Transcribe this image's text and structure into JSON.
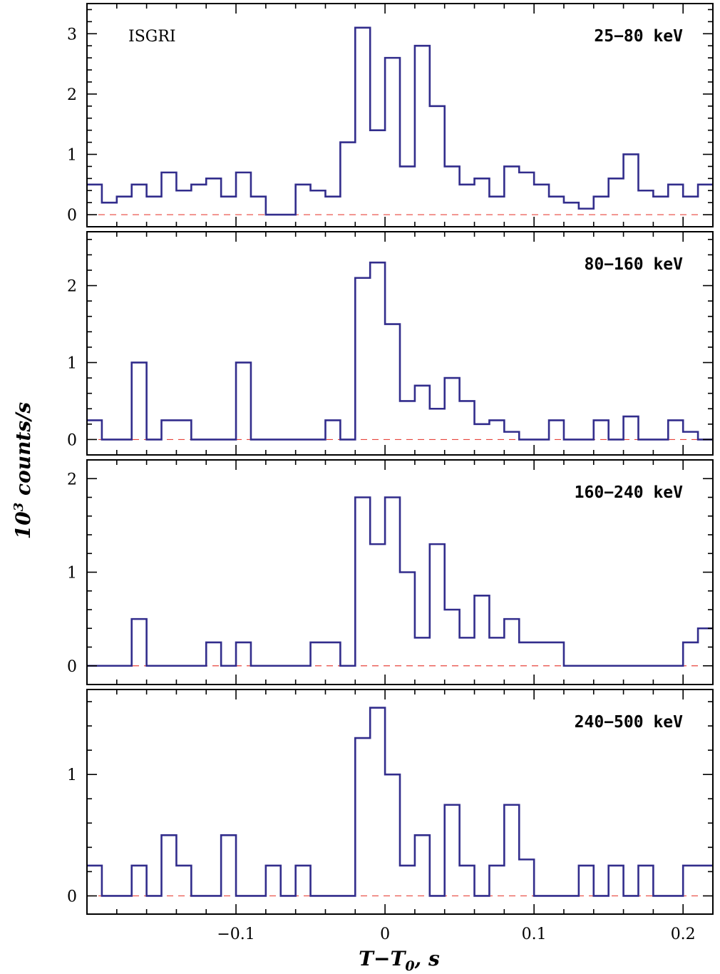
{
  "chart_data": {
    "type": "line",
    "instrument": "ISGRI",
    "xlabel_parts": {
      "main": "T−T",
      "sub": "0",
      "tail": ", s"
    },
    "ylabel_parts": {
      "main": "10",
      "sup": "3",
      "tail": " counts/s"
    },
    "xlim": [
      -0.2,
      0.22
    ],
    "bin_edges": [
      -0.2,
      -0.19,
      -0.18,
      -0.17,
      -0.16,
      -0.15,
      -0.14,
      -0.13,
      -0.12,
      -0.11,
      -0.1,
      -0.09,
      -0.08,
      -0.07,
      -0.06,
      -0.05,
      -0.04,
      -0.03,
      -0.02,
      -0.01,
      0.0,
      0.01,
      0.02,
      0.03,
      0.04,
      0.05,
      0.06,
      0.07,
      0.08,
      0.09,
      0.1,
      0.11,
      0.12,
      0.13,
      0.14,
      0.15,
      0.16,
      0.17,
      0.18,
      0.19,
      0.2,
      0.21,
      0.22
    ],
    "x_ticks": [
      {
        "value": -0.1,
        "label": "−0.1"
      },
      {
        "value": 0,
        "label": "0"
      },
      {
        "value": 0.1,
        "label": "0.1"
      },
      {
        "value": 0.2,
        "label": "0.2"
      }
    ],
    "panels": [
      {
        "label": "25−80 keV",
        "ylim": [
          -0.2,
          3.5
        ],
        "y_ticks": [
          {
            "value": 0,
            "label": "0"
          },
          {
            "value": 1,
            "label": "1"
          },
          {
            "value": 2,
            "label": "2"
          },
          {
            "value": 3,
            "label": "3"
          }
        ],
        "values": [
          0.5,
          0.2,
          0.3,
          0.5,
          0.3,
          0.7,
          0.4,
          0.5,
          0.6,
          0.3,
          0.7,
          0.3,
          0.0,
          0.0,
          0.5,
          0.4,
          0.3,
          1.2,
          3.1,
          1.4,
          2.6,
          0.8,
          2.8,
          1.8,
          0.8,
          0.5,
          0.6,
          0.3,
          0.8,
          0.7,
          0.5,
          0.3,
          0.2,
          0.1,
          0.3,
          0.6,
          1.0,
          0.4,
          0.3,
          0.5,
          0.3,
          0.5
        ]
      },
      {
        "label": "80−160 keV",
        "ylim": [
          -0.2,
          2.7
        ],
        "y_ticks": [
          {
            "value": 0,
            "label": "0"
          },
          {
            "value": 1,
            "label": "1"
          },
          {
            "value": 2,
            "label": "2"
          }
        ],
        "values": [
          0.25,
          0.0,
          0.0,
          1.0,
          0.0,
          0.25,
          0.25,
          0.0,
          0.0,
          0.0,
          1.0,
          0.0,
          0.0,
          0.0,
          0.0,
          0.0,
          0.25,
          0.0,
          2.1,
          2.3,
          1.5,
          0.5,
          0.7,
          0.4,
          0.8,
          0.5,
          0.2,
          0.25,
          0.1,
          0.0,
          0.0,
          0.25,
          0.0,
          0.0,
          0.25,
          0.0,
          0.3,
          0.0,
          0.0,
          0.25,
          0.1,
          0.0
        ]
      },
      {
        "label": "160−240 keV",
        "ylim": [
          -0.2,
          2.2
        ],
        "y_ticks": [
          {
            "value": 0,
            "label": "0"
          },
          {
            "value": 1,
            "label": "1"
          },
          {
            "value": 2,
            "label": "2"
          }
        ],
        "values": [
          0.0,
          0.0,
          0.0,
          0.5,
          0.0,
          0.0,
          0.0,
          0.0,
          0.25,
          0.0,
          0.25,
          0.0,
          0.0,
          0.0,
          0.0,
          0.25,
          0.25,
          0.0,
          1.8,
          1.3,
          1.8,
          1.0,
          0.3,
          1.3,
          0.6,
          0.3,
          0.75,
          0.3,
          0.5,
          0.25,
          0.25,
          0.25,
          0.0,
          0.0,
          0.0,
          0.0,
          0.0,
          0.0,
          0.0,
          0.0,
          0.25,
          0.4
        ]
      },
      {
        "label": "240−500 keV",
        "ylim": [
          -0.15,
          1.7
        ],
        "y_ticks": [
          {
            "value": 0,
            "label": "0"
          },
          {
            "value": 1,
            "label": "1"
          }
        ],
        "values": [
          0.25,
          0.0,
          0.0,
          0.25,
          0.0,
          0.5,
          0.25,
          0.0,
          0.0,
          0.5,
          0.0,
          0.0,
          0.25,
          0.0,
          0.25,
          0.0,
          0.0,
          0.0,
          1.3,
          1.55,
          1.0,
          0.25,
          0.5,
          0.0,
          0.75,
          0.25,
          0.0,
          0.25,
          0.75,
          0.3,
          0.0,
          0.0,
          0.0,
          0.25,
          0.0,
          0.25,
          0.0,
          0.25,
          0.0,
          0.0,
          0.25,
          0.25
        ]
      }
    ],
    "colors": {
      "histogram": "#322d8c",
      "zero_line": "#e8453c",
      "frame": "#000000"
    }
  }
}
